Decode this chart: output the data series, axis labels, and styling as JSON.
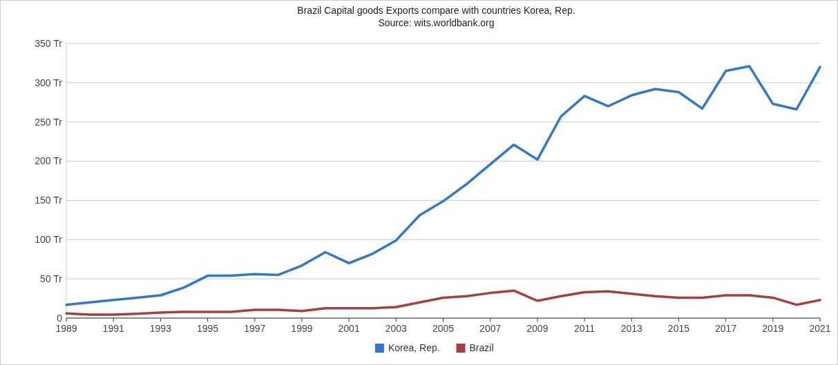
{
  "chart_data": {
    "type": "line",
    "title": "Brazil Capital goods Exports compare with countries Korea, Rep.",
    "subtitle": "Source: wits.worldbank.org",
    "x": [
      1989,
      1990,
      1991,
      1992,
      1993,
      1994,
      1995,
      1996,
      1997,
      1998,
      1999,
      2000,
      2001,
      2002,
      2003,
      2004,
      2005,
      2006,
      2007,
      2008,
      2009,
      2010,
      2011,
      2012,
      2013,
      2014,
      2015,
      2016,
      2017,
      2018,
      2019,
      2020,
      2021
    ],
    "series": [
      {
        "name": "Korea, Rep.",
        "color": "#2f77d1",
        "values": [
          17,
          20,
          23,
          26,
          29,
          39,
          54,
          54,
          56,
          55,
          67,
          84,
          70,
          82,
          99,
          131,
          149,
          171,
          196,
          221,
          202,
          257,
          283,
          270,
          284,
          292,
          288,
          267,
          315,
          321,
          273,
          266,
          320
        ]
      },
      {
        "name": "Brazil",
        "color": "#a83f3c",
        "values": [
          6,
          4.5,
          4.5,
          5.5,
          7,
          8,
          8,
          8,
          10.5,
          10.5,
          9,
          12.5,
          12.5,
          12.5,
          14,
          20,
          26,
          28,
          32,
          35,
          22,
          28,
          33,
          34,
          31,
          28,
          26,
          26,
          29,
          29,
          26,
          17,
          23
        ]
      }
    ],
    "xlim": [
      1989,
      2021
    ],
    "xticks": [
      1989,
      1991,
      1993,
      1995,
      1997,
      1999,
      2001,
      2003,
      2005,
      2007,
      2009,
      2011,
      2013,
      2015,
      2017,
      2019,
      2021
    ],
    "ylim": [
      0,
      350
    ],
    "yticks": [
      {
        "value": 0,
        "label": "0"
      },
      {
        "value": 50,
        "label": "50 Tr"
      },
      {
        "value": 100,
        "label": "100 Tr"
      },
      {
        "value": 150,
        "label": "150 Tr"
      },
      {
        "value": 200,
        "label": "200 Tr"
      },
      {
        "value": 250,
        "label": "250 Tr"
      },
      {
        "value": 300,
        "label": "300 Tr"
      },
      {
        "value": 350,
        "label": "350 Tr"
      }
    ],
    "grid": "y",
    "legend": "bottom"
  }
}
